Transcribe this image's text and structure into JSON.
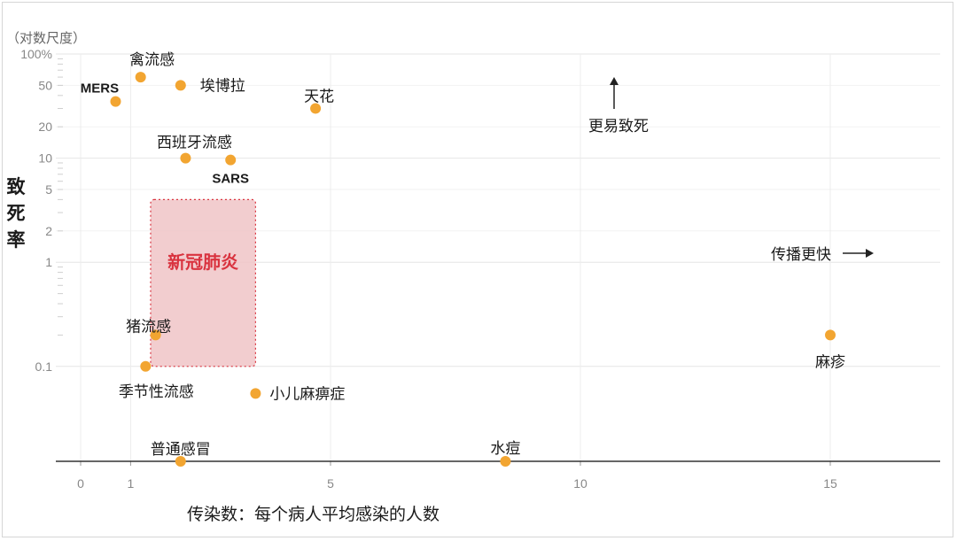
{
  "chart_data": {
    "type": "scatter",
    "title": "",
    "scale_note": "（对数尺度）",
    "ylabel": "致死率",
    "xlabel": "传染数：每个病人平均感染的人数",
    "xlim": [
      -0.5,
      17.5
    ],
    "ylim_percent": [
      0.01,
      100
    ],
    "yscale": "log",
    "xticks": [
      0,
      1,
      5,
      10,
      15
    ],
    "yticks": [
      {
        "value": 100,
        "label": "100%"
      },
      {
        "value": 50,
        "label": "50"
      },
      {
        "value": 20,
        "label": "20"
      },
      {
        "value": 10,
        "label": "10"
      },
      {
        "value": 5,
        "label": "5"
      },
      {
        "value": 2,
        "label": "2"
      },
      {
        "value": 1,
        "label": "1"
      },
      {
        "value": 0.1,
        "label": "0.1"
      }
    ],
    "point_color": "#f2a531",
    "points": [
      {
        "name": "禽流感",
        "x": 1.2,
        "y": 60,
        "latin": false
      },
      {
        "name": "埃博拉",
        "x": 2.0,
        "y": 50,
        "latin": false
      },
      {
        "name": "MERS",
        "x": 0.7,
        "y": 35,
        "latin": true
      },
      {
        "name": "天花",
        "x": 4.7,
        "y": 30,
        "latin": false
      },
      {
        "name": "西班牙流感",
        "x": 2.1,
        "y": 10,
        "latin": false
      },
      {
        "name": "SARS",
        "x": 3.0,
        "y": 9.6,
        "latin": true
      },
      {
        "name": "猪流感",
        "x": 1.5,
        "y": 0.2,
        "latin": false
      },
      {
        "name": "季节性流感",
        "x": 1.3,
        "y": 0.1,
        "latin": false
      },
      {
        "name": "小儿麻痹症",
        "x": 3.5,
        "y": 0.055,
        "latin": false
      },
      {
        "name": "麻疹",
        "x": 15.0,
        "y": 0.2,
        "latin": false
      },
      {
        "name": "普通感冒",
        "x": 2.0,
        "y": 0.0,
        "latin": false
      },
      {
        "name": "水痘",
        "x": 8.5,
        "y": 0.0,
        "latin": false
      }
    ],
    "highlight": {
      "name": "新冠肺炎",
      "x_range": [
        1.4,
        3.5
      ],
      "y_range": [
        0.1,
        4
      ],
      "color": "#d9333f"
    },
    "annotations": {
      "deadlier": "更易致死",
      "faster": "传播更快"
    }
  }
}
